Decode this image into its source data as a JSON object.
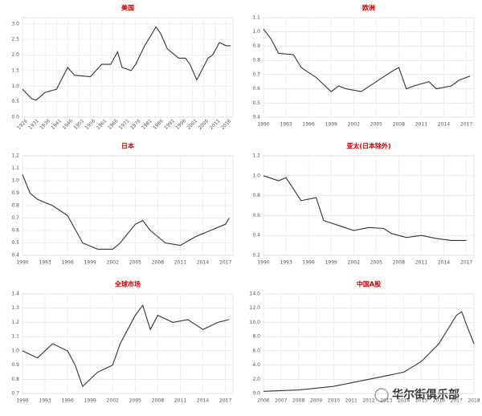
{
  "chart_data": [
    {
      "type": "line",
      "title": "美国",
      "color": "#333333",
      "grid": true,
      "x": [
        1926,
        1930,
        1932,
        1936,
        1941,
        1946,
        1949,
        1956,
        1961,
        1965,
        1968,
        1970,
        1974,
        1976,
        1980,
        1985,
        1987,
        1990,
        1995,
        1998,
        2000,
        2003,
        2008,
        2010,
        2013,
        2016,
        2018
      ],
      "values": [
        0.9,
        0.6,
        0.55,
        0.8,
        0.9,
        1.6,
        1.35,
        1.3,
        1.7,
        1.7,
        2.1,
        1.6,
        1.5,
        1.7,
        2.3,
        2.9,
        2.7,
        2.2,
        1.9,
        1.9,
        1.7,
        1.2,
        1.9,
        2.0,
        2.4,
        2.3,
        2.3
      ],
      "xlim": [
        1926,
        2019
      ],
      "xticks": [
        1926,
        1931,
        1936,
        1941,
        1946,
        1951,
        1956,
        1961,
        1966,
        1971,
        1976,
        1981,
        1986,
        1991,
        1996,
        2001,
        2006,
        2011,
        2016
      ],
      "ylim": [
        0,
        3.2
      ],
      "yticks": [
        {
          "value": 0,
          "label": "0.0"
        },
        0.5,
        {
          "value": 1,
          "label": "1.0"
        },
        1.5,
        {
          "value": 2,
          "label": "2.0"
        },
        2.5,
        {
          "value": 3,
          "label": "3.0"
        }
      ]
    },
    {
      "type": "line",
      "title": "欧洲",
      "color": "#333333",
      "grid": true,
      "x": [
        1990,
        1991,
        1992,
        1994,
        1995,
        1997,
        1999,
        2000,
        2001,
        2003,
        2005,
        2007,
        2008,
        2009,
        2010,
        2012,
        2013,
        2015,
        2016,
        2017.5
      ],
      "values": [
        1.02,
        0.95,
        0.85,
        0.84,
        0.75,
        0.68,
        0.58,
        0.62,
        0.6,
        0.58,
        0.65,
        0.72,
        0.75,
        0.6,
        0.62,
        0.65,
        0.6,
        0.62,
        0.66,
        0.69
      ],
      "xlim": [
        1990,
        2018
      ],
      "xticks": [
        1990,
        1993,
        1996,
        1999,
        2002,
        2005,
        2008,
        2011,
        2014,
        2017
      ],
      "ylim": [
        0.4,
        1.1
      ],
      "yticks": [
        0.4,
        0.5,
        0.6,
        0.7,
        0.8,
        0.9,
        {
          "value": 1,
          "label": "1.0"
        },
        1.1
      ]
    },
    {
      "type": "line",
      "title": "日本",
      "color": "#333333",
      "grid": true,
      "x": [
        1990,
        1991,
        1992,
        1994,
        1996,
        1998,
        2000,
        2002,
        2003,
        2005,
        2006,
        2007,
        2009,
        2011,
        2013,
        2015,
        2017,
        2017.5
      ],
      "values": [
        1.05,
        0.9,
        0.85,
        0.8,
        0.72,
        0.5,
        0.45,
        0.45,
        0.5,
        0.65,
        0.68,
        0.6,
        0.5,
        0.48,
        0.55,
        0.6,
        0.65,
        0.7
      ],
      "xlim": [
        1990,
        2018
      ],
      "xticks": [
        1990,
        1993,
        1996,
        1999,
        2002,
        2005,
        2008,
        2011,
        2014,
        2017
      ],
      "ylim": [
        0.4,
        1.2
      ],
      "yticks": [
        0.4,
        0.5,
        0.6,
        0.7,
        0.8,
        0.9,
        {
          "value": 1,
          "label": "1.0"
        },
        1.1,
        1.2
      ]
    },
    {
      "type": "line",
      "title": "亚太(日本除外)",
      "color": "#333333",
      "grid": true,
      "x": [
        1990,
        1992,
        1993,
        1995,
        1997,
        1998,
        2000,
        2002,
        2004,
        2006,
        2007,
        2009,
        2011,
        2013,
        2015,
        2017
      ],
      "values": [
        1.0,
        0.95,
        0.98,
        0.75,
        0.78,
        0.55,
        0.5,
        0.45,
        0.48,
        0.47,
        0.42,
        0.38,
        0.4,
        0.37,
        0.35,
        0.35
      ],
      "xlim": [
        1990,
        2018
      ],
      "xticks": [
        1990,
        1993,
        1996,
        1999,
        2002,
        2005,
        2008,
        2011,
        2014,
        2017
      ],
      "ylim": [
        0.2,
        1.2
      ],
      "yticks": [
        0.2,
        0.4,
        0.6,
        0.8,
        {
          "value": 1,
          "label": "1.0"
        },
        1.2
      ]
    },
    {
      "type": "line",
      "title": "全球市场",
      "color": "#333333",
      "grid": true,
      "x": [
        1990,
        1992,
        1994,
        1996,
        1997,
        1998,
        2000,
        2002,
        2003,
        2005,
        2006,
        2007,
        2008,
        2010,
        2012,
        2014,
        2016,
        2017.5
      ],
      "values": [
        1.0,
        0.95,
        1.05,
        1.0,
        0.9,
        0.75,
        0.85,
        0.9,
        1.05,
        1.25,
        1.32,
        1.15,
        1.25,
        1.2,
        1.22,
        1.15,
        1.2,
        1.22
      ],
      "xlim": [
        1990,
        2018
      ],
      "xticks": [
        1990,
        1993,
        1996,
        1999,
        2002,
        2005,
        2008,
        2011,
        2014,
        2017
      ],
      "ylim": [
        0.7,
        1.4
      ],
      "yticks": [
        0.7,
        0.8,
        0.9,
        {
          "value": 1,
          "label": "1.0"
        },
        1.1,
        1.2,
        1.3,
        1.4
      ]
    },
    {
      "type": "line",
      "title": "中国A股",
      "color": "#333333",
      "grid": true,
      "x": [
        2006,
        2008,
        2010,
        2011,
        2012,
        2013,
        2014,
        2015,
        2016,
        2017,
        2017.3,
        2017.6,
        2018
      ],
      "values": [
        0.3,
        0.5,
        1.0,
        1.5,
        2.0,
        2.5,
        3.0,
        4.5,
        7.0,
        11.0,
        11.5,
        9.5,
        7.0
      ],
      "xlim": [
        2006,
        2018
      ],
      "xticks": [
        2006,
        2007,
        2008,
        2009,
        2010,
        2011,
        2012,
        2013,
        2014,
        2015,
        2016,
        2017,
        2018
      ],
      "ylim": [
        0,
        14
      ],
      "yticks": [
        {
          "value": 0,
          "label": "0.0"
        },
        {
          "value": 2,
          "label": "2.0"
        },
        {
          "value": 4,
          "label": "4.0"
        },
        {
          "value": 6,
          "label": "6.0"
        },
        {
          "value": 8,
          "label": "8.0"
        },
        {
          "value": 10,
          "label": "10.0"
        },
        {
          "value": 12,
          "label": "12.0"
        },
        {
          "value": 14,
          "label": "14.0"
        }
      ]
    }
  ],
  "watermark": "华尔街俱乐部"
}
